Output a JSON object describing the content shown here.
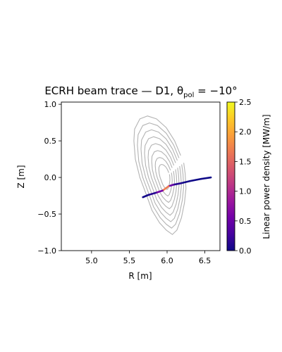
{
  "chart_data": {
    "type": "line",
    "title": "ECRH beam trace — D1, θ",
    "title_subscript": "pol",
    "title_suffix": " = −10°",
    "xlabel": "R [m]",
    "ylabel": "Z [m]",
    "xlim": [
      4.6,
      6.7
    ],
    "ylim": [
      -1.0,
      1.03
    ],
    "x_ticks": [
      5.0,
      5.5,
      6.0,
      6.5
    ],
    "x_tick_labels": [
      "5.0",
      "5.5",
      "6.0",
      "6.5"
    ],
    "y_ticks": [
      -1.0,
      -0.5,
      0.0,
      0.5,
      1.0
    ],
    "y_tick_labels": [
      "−1.0",
      "−0.5",
      "0.0",
      "0.5",
      "1.0"
    ],
    "grid": false,
    "beam": {
      "r": [
        6.58,
        6.45,
        6.3,
        6.18,
        6.08,
        6.02,
        5.98,
        5.94,
        5.85,
        5.75,
        5.68
      ],
      "z": [
        0.0,
        -0.02,
        -0.05,
        -0.08,
        -0.1,
        -0.12,
        -0.15,
        -0.18,
        -0.21,
        -0.24,
        -0.27
      ],
      "power_density": [
        0.0,
        0.0,
        0.0,
        0.05,
        0.2,
        0.8,
        2.5,
        0.9,
        0.2,
        0.05,
        0.0
      ]
    },
    "flux_surfaces": {
      "color": "#b3b3b3",
      "axis_r": 5.98,
      "axis_z": 0.0,
      "count": 8,
      "outer": {
        "r": [
          6.18,
          6.1,
          5.99,
          5.86,
          5.74,
          5.64,
          5.57,
          5.56,
          5.58,
          5.64,
          5.72,
          5.8,
          5.9,
          5.99,
          6.07,
          6.13,
          6.19,
          6.23,
          6.25,
          6.24,
          6.22
        ],
        "z": [
          0.3,
          0.5,
          0.68,
          0.8,
          0.84,
          0.8,
          0.66,
          0.5,
          0.25,
          0.0,
          -0.22,
          -0.45,
          -0.62,
          -0.72,
          -0.78,
          -0.72,
          -0.55,
          -0.35,
          -0.15,
          0.05,
          0.2
        ]
      }
    },
    "colorbar": {
      "label": "Linear power density [MW/m]",
      "min": 0.0,
      "max": 2.5,
      "ticks": [
        0.0,
        0.5,
        1.0,
        1.5,
        2.0,
        2.5
      ],
      "tick_labels": [
        "0.0",
        "0.5",
        "1.0",
        "1.5",
        "2.0",
        "2.5"
      ],
      "colormap": "plasma",
      "stops": [
        "#0d0887",
        "#46039f",
        "#7201a8",
        "#9c179e",
        "#bd3786",
        "#d8576b",
        "#ed7953",
        "#fb9f3a",
        "#fdca26",
        "#f0f921"
      ]
    }
  }
}
